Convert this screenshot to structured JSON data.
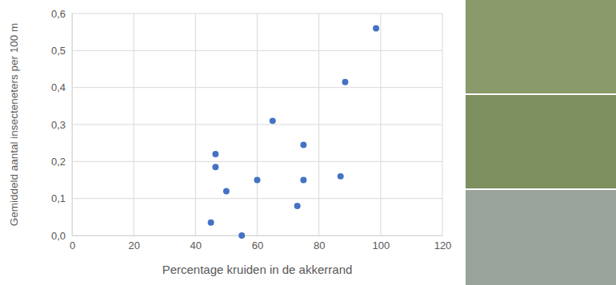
{
  "chart_data": {
    "type": "scatter",
    "x_label": "Percentage kruiden in de akkerrand",
    "y_label": "Gemiddeld aantal insecteneters per 100 m",
    "x": [
      45,
      46.5,
      46.5,
      50,
      55,
      60,
      65,
      73,
      75,
      75,
      87,
      88.5,
      98.5
    ],
    "values": [
      0.035,
      0.22,
      0.185,
      0.12,
      0.0,
      0.15,
      0.31,
      0.08,
      0.245,
      0.15,
      0.16,
      0.415,
      0.56
    ],
    "color": "#4472c4",
    "marker": "circle",
    "xlim": [
      0,
      120
    ],
    "xticks": [
      0,
      20,
      40,
      60,
      80,
      100,
      120
    ],
    "ylim": [
      0,
      0.6
    ],
    "yticks": [
      {
        "value": 0,
        "label": "0,0"
      },
      {
        "value": 0.1,
        "label": "0,1"
      },
      {
        "value": 0.2,
        "label": "0,2"
      },
      {
        "value": 0.3,
        "label": "0,3"
      },
      {
        "value": 0.4,
        "label": "0,4"
      },
      {
        "value": 0.5,
        "label": "0,5"
      },
      {
        "value": 0.6,
        "label": "0,6"
      }
    ],
    "grid": true
  }
}
